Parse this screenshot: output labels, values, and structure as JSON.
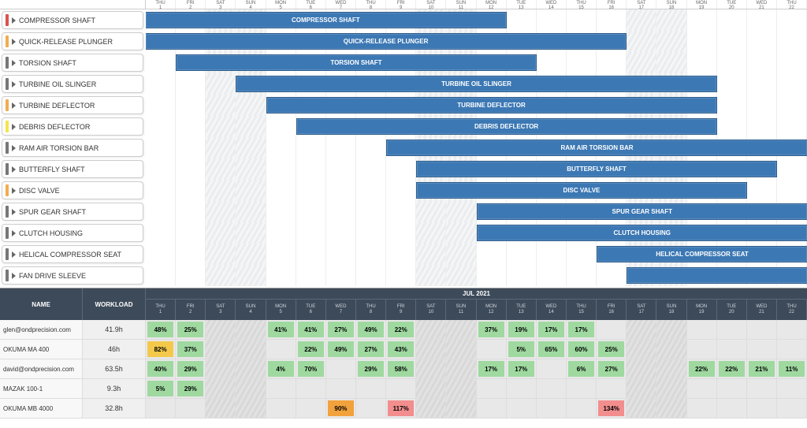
{
  "days": [
    {
      "dow": "THU",
      "num": "1",
      "weekend": false
    },
    {
      "dow": "FRI",
      "num": "2",
      "weekend": false
    },
    {
      "dow": "SAT",
      "num": "3",
      "weekend": true
    },
    {
      "dow": "SUN",
      "num": "4",
      "weekend": true
    },
    {
      "dow": "MON",
      "num": "5",
      "weekend": false
    },
    {
      "dow": "TUE",
      "num": "6",
      "weekend": false
    },
    {
      "dow": "WED",
      "num": "7",
      "weekend": false
    },
    {
      "dow": "THU",
      "num": "8",
      "weekend": false
    },
    {
      "dow": "FRI",
      "num": "9",
      "weekend": false
    },
    {
      "dow": "SAT",
      "num": "10",
      "weekend": true
    },
    {
      "dow": "SUN",
      "num": "11",
      "weekend": true
    },
    {
      "dow": "MON",
      "num": "12",
      "weekend": false
    },
    {
      "dow": "TUE",
      "num": "13",
      "weekend": false
    },
    {
      "dow": "WED",
      "num": "14",
      "weekend": false
    },
    {
      "dow": "THU",
      "num": "15",
      "weekend": false
    },
    {
      "dow": "FRI",
      "num": "16",
      "weekend": false
    },
    {
      "dow": "SAT",
      "num": "17",
      "weekend": true
    },
    {
      "dow": "SUN",
      "num": "18",
      "weekend": true
    },
    {
      "dow": "MON",
      "num": "19",
      "weekend": false
    },
    {
      "dow": "TUE",
      "num": "20",
      "weekend": false
    },
    {
      "dow": "WED",
      "num": "21",
      "weekend": false
    },
    {
      "dow": "THU",
      "num": "22",
      "weekend": false
    }
  ],
  "tasks": [
    {
      "label": "COMPRESSOR SHAFT",
      "color": "#d9534f",
      "barLabel": "COMPRESSOR SHAFT",
      "start": 0,
      "end": 12,
      "overflowLeft": true
    },
    {
      "label": "QUICK-RELEASE PLUNGER",
      "color": "#f0ad4e",
      "barLabel": "QUICK-RELEASE PLUNGER",
      "start": 0,
      "end": 16,
      "overflowLeft": true
    },
    {
      "label": "TORSION SHAFT",
      "color": "#777",
      "barLabel": "TORSION SHAFT",
      "start": 1,
      "end": 13
    },
    {
      "label": "TURBINE OIL SLINGER",
      "color": "#777",
      "barLabel": "TURBINE OIL SLINGER",
      "start": 3,
      "end": 19
    },
    {
      "label": "TURBINE DEFLECTOR",
      "color": "#f0ad4e",
      "barLabel": "TURBINE DEFLECTOR",
      "start": 4,
      "end": 19
    },
    {
      "label": "DEBRIS DEFLECTOR",
      "color": "#f5e44b",
      "barLabel": "DEBRIS DEFLECTOR",
      "start": 5,
      "end": 19
    },
    {
      "label": "RAM AIR TORSION BAR",
      "color": "#777",
      "barLabel": "RAM AIR TORSION BAR",
      "start": 8,
      "end": 22,
      "overflowRight": true
    },
    {
      "label": "BUTTERFLY SHAFT",
      "color": "#777",
      "barLabel": "BUTTERFLY SHAFT",
      "start": 9,
      "end": 21
    },
    {
      "label": "DISC VALVE",
      "color": "#f0ad4e",
      "barLabel": "DISC VALVE",
      "start": 9,
      "end": 20
    },
    {
      "label": "SPUR GEAR SHAFT",
      "color": "#777",
      "barLabel": "SPUR GEAR SHAFT",
      "start": 11,
      "end": 22,
      "overflowRight": true
    },
    {
      "label": "CLUTCH HOUSING",
      "color": "#777",
      "barLabel": "CLUTCH HOUSING",
      "start": 11,
      "end": 22,
      "overflowRight": true
    },
    {
      "label": "HELICAL COMPRESSOR SEAT",
      "color": "#777",
      "barLabel": "HELICAL COMPRESSOR SEAT",
      "start": 15,
      "end": 22,
      "overflowRight": true
    },
    {
      "label": "FAN DRIVE SLEEVE",
      "color": "#777",
      "barLabel": "",
      "start": 16,
      "end": 22,
      "overflowRight": true
    }
  ],
  "workload": {
    "month": "JUL 2021",
    "nameHeader": "NAME",
    "workloadHeader": "WORKLOAD",
    "rows": [
      {
        "name": "glen@ondprecision.com",
        "hours": "41.9h",
        "cells": {
          "0": "48%",
          "1": "25%",
          "4": "41%",
          "5": "41%",
          "6": "27%",
          "7": "49%",
          "8": "22%",
          "11": "37%",
          "12": "19%",
          "13": "17%",
          "14": "17%"
        }
      },
      {
        "name": "OKUMA MA 400",
        "hours": "46h",
        "cells": {
          "0": {
            "v": "82%",
            "c": "yellow"
          },
          "1": "37%",
          "5": "22%",
          "6": "49%",
          "7": "27%",
          "8": "43%",
          "12": "5%",
          "13": "65%",
          "14": "60%",
          "15": "25%"
        }
      },
      {
        "name": "david@ondprecision.com",
        "hours": "63.5h",
        "cells": {
          "0": "40%",
          "1": "29%",
          "4": "4%",
          "5": "70%",
          "7": "29%",
          "8": "58%",
          "11": "17%",
          "12": "17%",
          "14": "6%",
          "15": "27%",
          "18": "22%",
          "19": "22%",
          "20": "21%",
          "21": "11%"
        }
      },
      {
        "name": "MAZAK 100-1",
        "hours": "9.3h",
        "cells": {
          "0": "5%",
          "1": "29%"
        }
      },
      {
        "name": "OKUMA MB 4000",
        "hours": "32.8h",
        "cells": {
          "6": {
            "v": "90%",
            "c": "orange"
          },
          "8": {
            "v": "117%",
            "c": "red"
          },
          "15": {
            "v": "134%",
            "c": "red"
          }
        }
      }
    ]
  },
  "colors": {
    "bar": "#3c78b4",
    "barBorder": "#2d5d8c",
    "workloadHeaderBg": "#3d4a5a",
    "cellGreen": "#9fd9a0",
    "cellYellow": "#f4c94b",
    "cellOrange": "#f2a23c",
    "cellRed": "#f28e8e"
  }
}
